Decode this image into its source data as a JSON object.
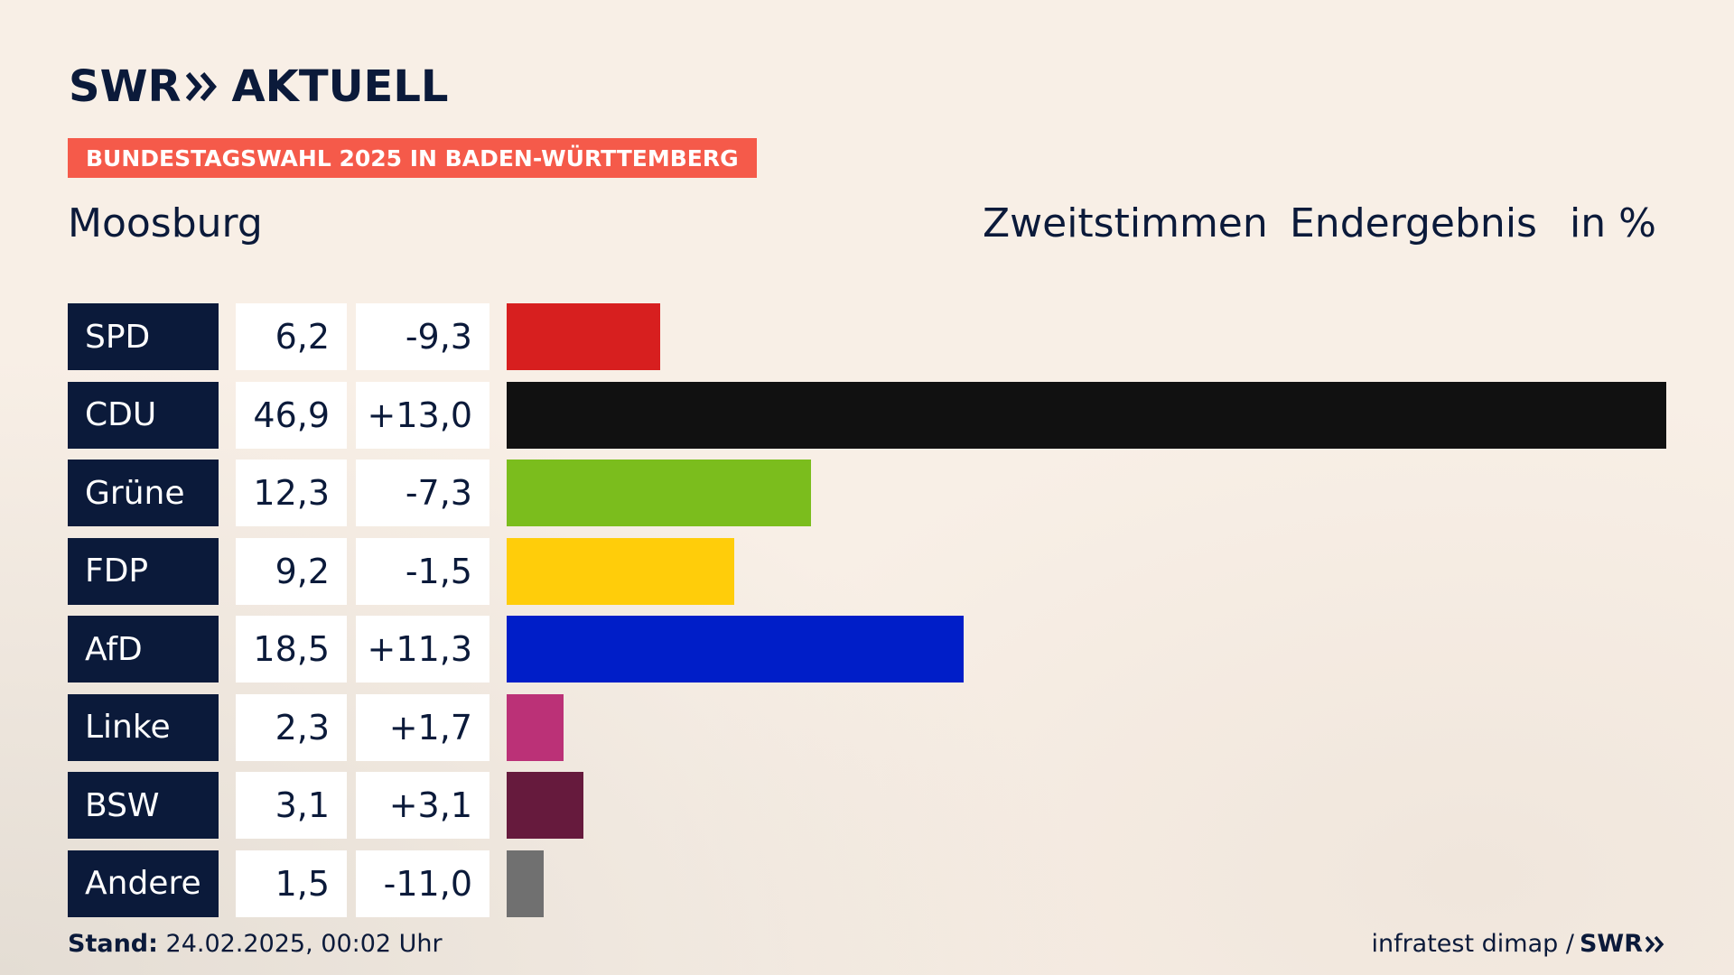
{
  "logo": {
    "left": "SWR",
    "right": "AKTUELL"
  },
  "banner": "BUNDESTAGSWAHL 2025 IN BADEN-WÜRTTEMBERG",
  "place": "Moosburg",
  "header": {
    "vote_type": "Zweitstimmen",
    "result_type": "Endergebnis",
    "unit": "in %"
  },
  "footer": {
    "stand_label": "Stand:",
    "stand_value": "24.02.2025, 00:02 Uhr",
    "source": "infratest dimap /",
    "brand": "SWR"
  },
  "chart_data": {
    "type": "bar",
    "orientation": "horizontal",
    "categories": [
      "SPD",
      "CDU",
      "Grüne",
      "FDP",
      "AfD",
      "Linke",
      "BSW",
      "Andere"
    ],
    "values": [
      6.2,
      46.9,
      12.3,
      9.2,
      18.5,
      2.3,
      3.1,
      1.5
    ],
    "value_labels": [
      "6,2",
      "46,9",
      "12,3",
      "9,2",
      "18,5",
      "2,3",
      "3,1",
      "1,5"
    ],
    "change_labels": [
      "-9,3",
      "+13,0",
      "-7,3",
      "-1,5",
      "+11,3",
      "+1,7",
      "+3,1",
      "-11,0"
    ],
    "changes": [
      -9.3,
      13.0,
      -7.3,
      -1.5,
      11.3,
      1.7,
      3.1,
      -11.0
    ],
    "colors": [
      "#d71f1f",
      "#111111",
      "#7bbd1d",
      "#ffcd0a",
      "#001ec8",
      "#bb3177",
      "#661a3d",
      "#707070"
    ],
    "xlim": [
      0,
      46.9
    ]
  }
}
